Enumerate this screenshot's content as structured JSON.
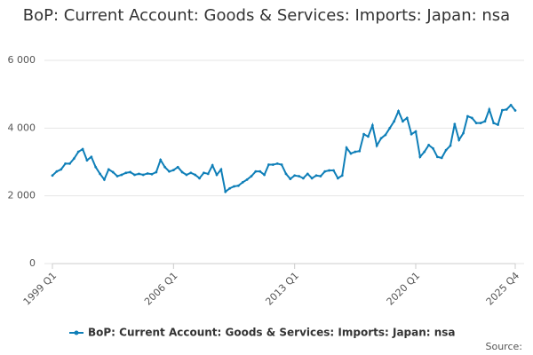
{
  "chart_data": {
    "type": "line",
    "title": "BoP: Current Account: Goods & Services: Imports: Japan: nsa",
    "source": "Source:",
    "categories": [
      "1999 Q1",
      null,
      null,
      null,
      null,
      null,
      null,
      null,
      null,
      null,
      null,
      null,
      null,
      null,
      null,
      null,
      null,
      null,
      null,
      null,
      null,
      null,
      null,
      null,
      null,
      null,
      null,
      null,
      "2006 Q1",
      null,
      null,
      null,
      null,
      null,
      null,
      null,
      null,
      null,
      null,
      null,
      null,
      null,
      null,
      null,
      null,
      null,
      null,
      null,
      null,
      null,
      null,
      null,
      null,
      null,
      null,
      null,
      "2013 Q1",
      null,
      null,
      null,
      null,
      null,
      null,
      null,
      null,
      null,
      null,
      null,
      null,
      null,
      null,
      null,
      null,
      null,
      null,
      null,
      null,
      null,
      null,
      null,
      null,
      null,
      null,
      null,
      "2020 Q1",
      null,
      null,
      null,
      null,
      null,
      null,
      null,
      null,
      null,
      null,
      null,
      null,
      null,
      null,
      null,
      null,
      null,
      null,
      null,
      null,
      null,
      null,
      "2025 Q4"
    ],
    "series": [
      {
        "name": "BoP: Current Account: Goods & Services: Imports: Japan: nsa",
        "color": "#0f7fb8",
        "values": [
          2600,
          2720,
          2780,
          2950,
          2950,
          3100,
          3300,
          3380,
          3050,
          3150,
          2850,
          2650,
          2480,
          2780,
          2700,
          2580,
          2620,
          2680,
          2700,
          2620,
          2650,
          2620,
          2660,
          2640,
          2700,
          3060,
          2850,
          2720,
          2760,
          2850,
          2700,
          2620,
          2680,
          2620,
          2520,
          2680,
          2650,
          2900,
          2620,
          2780,
          2120,
          2220,
          2280,
          2300,
          2400,
          2480,
          2580,
          2720,
          2720,
          2620,
          2920,
          2920,
          2950,
          2920,
          2650,
          2500,
          2600,
          2580,
          2520,
          2650,
          2520,
          2600,
          2580,
          2720,
          2750,
          2750,
          2520,
          2600,
          3420,
          3250,
          3300,
          3320,
          3820,
          3750,
          4080,
          3480,
          3700,
          3800,
          4000,
          4200,
          4500,
          4200,
          4300,
          3820,
          3900,
          3150,
          3300,
          3500,
          3400,
          3150,
          3120,
          3350,
          3480,
          4120,
          3650,
          3850,
          4350,
          4300,
          4150,
          4150,
          4200,
          4550,
          4150,
          4100,
          4530,
          4550,
          4680,
          4520
        ]
      }
    ],
    "ylim": [
      0,
      6000
    ],
    "yticks": [
      0,
      {
        "value": 2000,
        "label": "2 000"
      },
      {
        "value": 4000,
        "label": "4 000"
      },
      {
        "value": 6000,
        "label": "6 000"
      }
    ],
    "grid": true
  }
}
